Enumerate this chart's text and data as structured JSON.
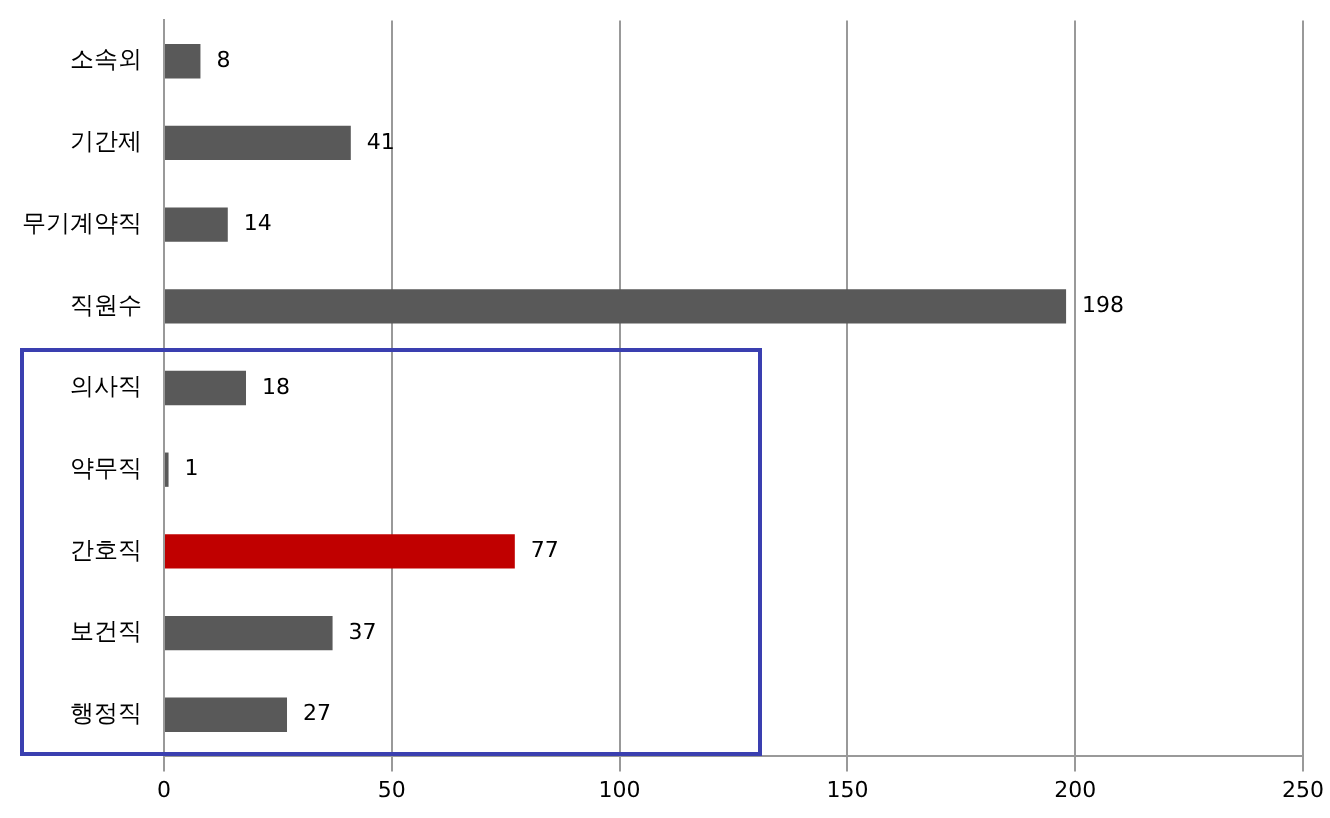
{
  "chart_data": {
    "type": "bar",
    "orientation": "horizontal",
    "categories": [
      "소속외",
      "기간제",
      "무기계약직",
      "직원수",
      "의사직",
      "약무직",
      "간호직",
      "보건직",
      "행정직"
    ],
    "values": [
      8,
      41,
      14,
      198,
      18,
      1,
      77,
      37,
      27
    ],
    "colors": [
      "#595959",
      "#595959",
      "#595959",
      "#595959",
      "#595959",
      "#595959",
      "#c00000",
      "#595959",
      "#595959"
    ],
    "xlim": [
      0,
      250
    ],
    "xticks": [
      0,
      50,
      100,
      150,
      200,
      250
    ],
    "grid": "x",
    "legend": false,
    "data_labels": true
  }
}
